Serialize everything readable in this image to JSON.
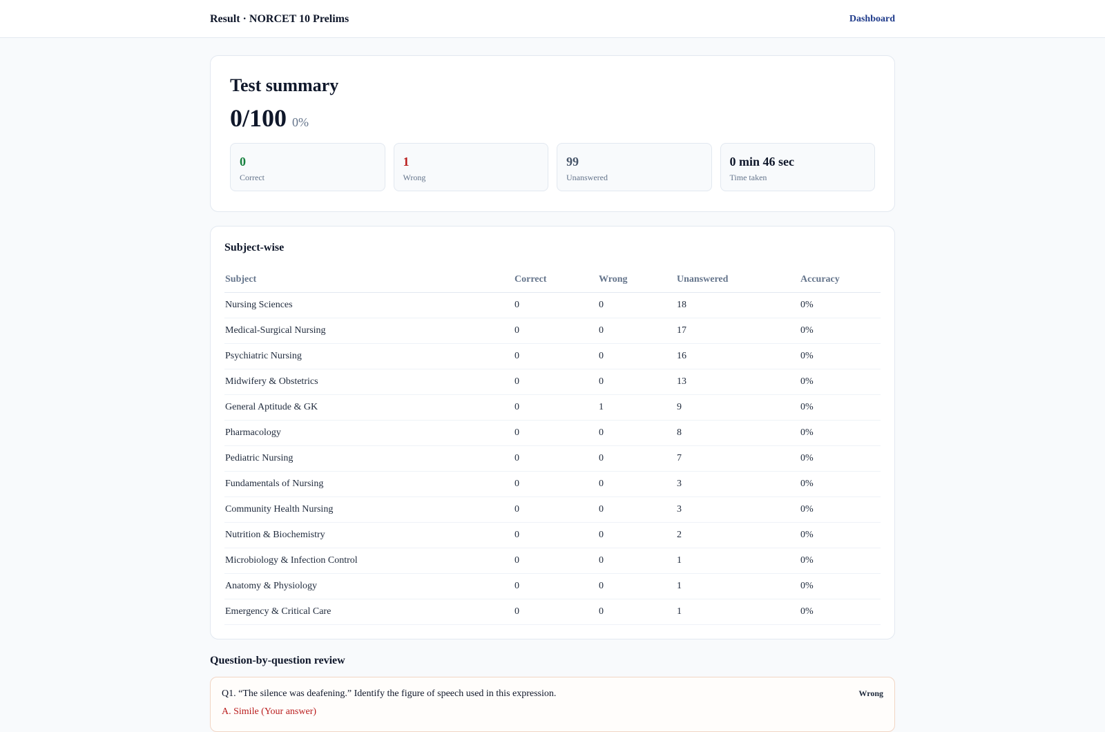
{
  "header": {
    "title": "Result · NORCET 10 Prelims",
    "dashboard_link": "Dashboard"
  },
  "summary": {
    "heading": "Test summary",
    "score": "0/100",
    "percent": "0%",
    "stats": [
      {
        "value": "0",
        "label": "Correct",
        "color": "#15803d"
      },
      {
        "value": "1",
        "label": "Wrong",
        "color": "#b91c1c"
      },
      {
        "value": "99",
        "label": "Unanswered",
        "color": "#475569"
      },
      {
        "value": "0 min 46 sec",
        "label": "Time taken",
        "color": "#0f172a"
      }
    ]
  },
  "subject_table": {
    "heading": "Subject-wise",
    "columns": [
      "Subject",
      "Correct",
      "Wrong",
      "Unanswered",
      "Accuracy"
    ],
    "rows": [
      [
        "Nursing Sciences",
        "0",
        "0",
        "18",
        "0%"
      ],
      [
        "Medical-Surgical Nursing",
        "0",
        "0",
        "17",
        "0%"
      ],
      [
        "Psychiatric Nursing",
        "0",
        "0",
        "16",
        "0%"
      ],
      [
        "Midwifery & Obstetrics",
        "0",
        "0",
        "13",
        "0%"
      ],
      [
        "General Aptitude & GK",
        "0",
        "1",
        "9",
        "0%"
      ],
      [
        "Pharmacology",
        "0",
        "0",
        "8",
        "0%"
      ],
      [
        "Pediatric Nursing",
        "0",
        "0",
        "7",
        "0%"
      ],
      [
        "Fundamentals of Nursing",
        "0",
        "0",
        "3",
        "0%"
      ],
      [
        "Community Health Nursing",
        "0",
        "0",
        "3",
        "0%"
      ],
      [
        "Nutrition & Biochemistry",
        "0",
        "0",
        "2",
        "0%"
      ],
      [
        "Microbiology & Infection Control",
        "0",
        "0",
        "1",
        "0%"
      ],
      [
        "Anatomy & Physiology",
        "0",
        "0",
        "1",
        "0%"
      ],
      [
        "Emergency & Critical Care",
        "0",
        "0",
        "1",
        "0%"
      ]
    ]
  },
  "review": {
    "heading": "Question-by-question review",
    "questions": [
      {
        "text": "Q1. “The silence was deafening.” Identify the figure of speech used in this expression.",
        "status": "Wrong",
        "option": "A. Simile (Your answer)"
      }
    ]
  }
}
